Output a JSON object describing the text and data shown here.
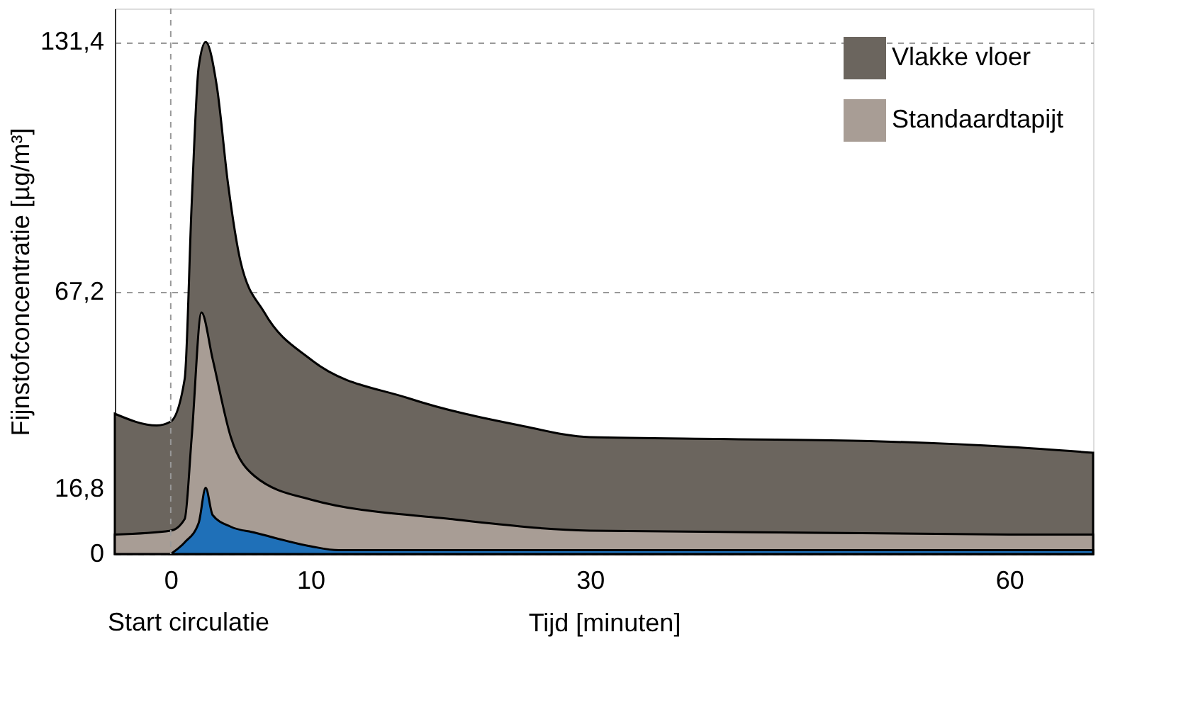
{
  "chart_data": {
    "type": "area",
    "xlabel": "Tijd [minuten]",
    "ylabel": "Fijnstofconcentratie [µg/m³]",
    "annotations": [
      "Start circulatie"
    ],
    "xlim": [
      -4,
      66
    ],
    "xticks": [
      0,
      10,
      30,
      60
    ],
    "ylim": [
      0,
      140
    ],
    "yticks": [
      0,
      {
        "value": 16.8,
        "label": "16,8"
      },
      {
        "value": 67.2,
        "label": "67,2"
      },
      {
        "value": 131.4,
        "label": "131,4"
      }
    ],
    "grid": "y",
    "legend": "top right",
    "ref_lines": [
      {
        "axis": "x",
        "value": 0,
        "label": null,
        "line_style": "dashed"
      }
    ],
    "series": [
      {
        "name": "Vlakke vloer",
        "color": "#6b655e",
        "x": [
          -4,
          -1,
          0,
          1,
          1.5,
          2,
          2.5,
          3.3,
          4.1,
          5,
          6.7,
          10,
          17,
          25,
          30,
          40,
          50,
          60,
          66
        ],
        "values": [
          36,
          33,
          34,
          45,
          90,
          125,
          131.4,
          120,
          95,
          75,
          62,
          50,
          40,
          33,
          30,
          29.5,
          29,
          27.5,
          26
        ]
      },
      {
        "name": "Standaardtapijt",
        "color": "#a89d95",
        "x": [
          -4,
          0,
          1,
          1.5,
          2.2,
          3,
          4.3,
          6,
          10,
          20,
          30,
          60,
          66
        ],
        "values": [
          5,
          6,
          9,
          30,
          62,
          50,
          30,
          20,
          14,
          9,
          6,
          5,
          5
        ]
      },
      {
        "color": "#1f70b8",
        "x": [
          0,
          1,
          2,
          2.5,
          3,
          4.3,
          6,
          10,
          12,
          66
        ],
        "values": [
          0,
          3,
          8,
          17,
          10,
          7,
          5.5,
          2,
          1,
          1
        ]
      }
    ]
  }
}
